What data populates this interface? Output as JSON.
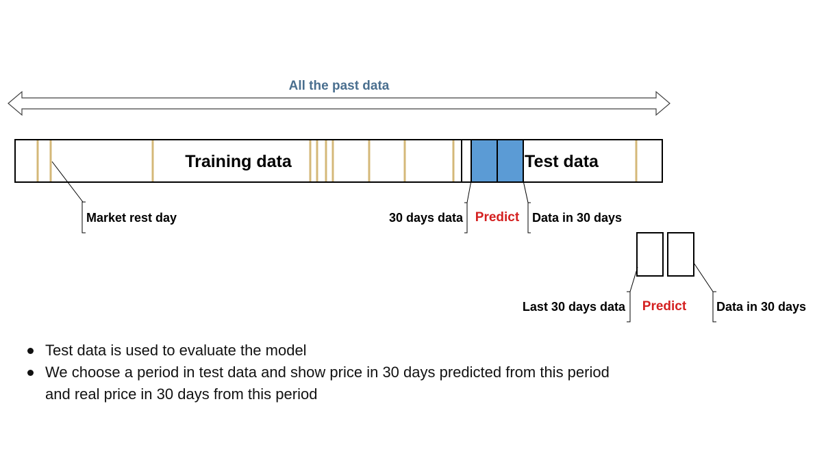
{
  "timeline": {
    "all_past_label": "All the past data"
  },
  "bar": {
    "training_label": "Training data",
    "test_label": "Test data"
  },
  "callouts": {
    "market_rest_day": "Market rest day",
    "thirty_days_data": "30 days data",
    "predict_top": "Predict",
    "data_in_30_top": "Data in 30 days",
    "last_30_days_data": "Last 30 days data",
    "predict_bottom": "Predict",
    "data_in_30_bottom": "Data in 30 days"
  },
  "bullets": [
    "Test data is used to evaluate the model",
    "We choose a period in test data and show price in 30 days predicted from this period and real price in 30 days from this period"
  ],
  "colors": {
    "arrow_label": "#4a6f8f",
    "predict": "#d42020",
    "window_fill": "#5b9bd5",
    "rest_day_line": "#d4b878",
    "outline": "#000000"
  }
}
